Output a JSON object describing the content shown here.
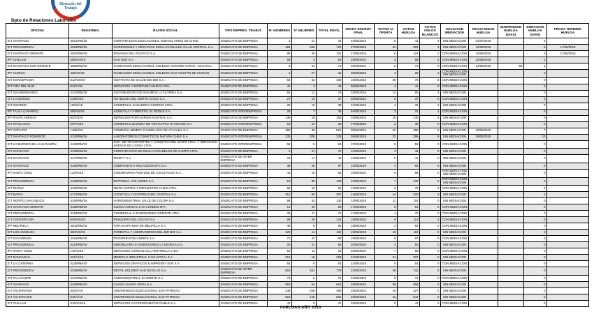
{
  "logo": {
    "label": "Dirección del Trabajo"
  },
  "header": {
    "title": "Dpto de Relaciones Laborales"
  },
  "footer": {
    "label": "HUELGAS AÑO 2019"
  },
  "colors": {
    "border": "#000000",
    "zebra": "#e6e6e6",
    "logo_blue": "#1f5fa8",
    "logo_red": "#d8281e"
  },
  "table": {
    "columns": [
      "OFICINA",
      "REGIONES.",
      "RAZON SOCIAL",
      "TIPO REPRES. TRABJS",
      "N° HOMBRES",
      "N° MUJERES",
      "TOTAL INVOL.",
      "FECHA ESCRUT. FINAL",
      "VOTOS U. OFERTA",
      "VOTOS HUELGA",
      "VOTOS NULOS BLANCOS",
      "SOLICITUD MEDIACION",
      "FECHA INICIO HUELGA",
      "SUSPENSION HUELGA (DIAS)",
      "DURACION HUELGA (DIAS)",
      "FECHA TERMINO HUELGA"
    ],
    "rows": [
      [
        "ICT SANTIAGO",
        "4021/RM/19",
        "CORPORACION EDUCACIONAL NUEVOS AIRES DE CHILE.",
        "SINDICATO DE EMPRESA",
        "3",
        "41",
        "44",
        "24/06/2019",
        "5",
        "41",
        "0",
        "SIN MEDIACION",
        "01/07/2019",
        "",
        "4",
        ""
      ],
      [
        "ICT PROVIDENCIA",
        "4038/RM/19",
        "INVERSIONES Y SERVICIOS EDUCACIONALES VALLE CENTRAL S.A.",
        "SINDICATO DE EMPRESA",
        "462",
        "258",
        "720",
        "27/05/2019",
        "62",
        "582",
        "4",
        "SIN MEDIACION",
        "10/06/2019",
        "",
        "8",
        "17/06/2019"
      ],
      [
        "ICT SANTIAGO ORIENTE",
        "4042/RM/19",
        "ENVASES DEL PACIFICO S.A.",
        "SINDICATO DE EMPRESA",
        "98",
        "26",
        "124",
        "27/05/2019",
        "0",
        "124",
        "0",
        "CON MEDIACION",
        "10/06/2019",
        "",
        "8",
        "17/06/2019"
      ],
      [
        "IPT CHILLAN",
        "308/XVI/19",
        "GAS SUR S.A.",
        "SINDICATO DE EMPRESA",
        "58",
        "4",
        "62",
        "28/05/2019",
        "2",
        "58",
        "2",
        "CON MEDIACION",
        "12/06/2019",
        "",
        "2",
        ""
      ],
      [
        "ICT SANTIAGO SUR ORIENTE",
        "4055/RM/19",
        "FUNDACION EDUCACIONAL COLEGIO ANTONIO VARAS - MACHALI.",
        "SINDICATO DE EMPRESA",
        "9",
        "64",
        "73",
        "30/05/2019",
        "0",
        "73",
        "0",
        "CON MEDIACION",
        "14/06/2019",
        "-60",
        "4",
        ""
      ],
      [
        "IPT CURICO",
        "402/VII/19",
        "FUNDACION EDUCACIONAL COLEGIO SAN AGUSTIN DE CURICO.",
        "SINDICATO DE EMPRESA",
        "4",
        "27",
        "31",
        "06/06/2019",
        "4",
        "26",
        "1",
        "CON MEDIACION SIN MEDIACION",
        "",
        "",
        "0",
        ""
      ],
      [
        "ICT CONCEPCION",
        "812/VIII/19",
        "INSTITUTO DE SALUD BIO BIO S.A.",
        "SINDICATO DE EMPRESA",
        "56",
        "52",
        "108",
        "10/06/2019",
        "25",
        "75",
        "8",
        "CON MEDIACION",
        "",
        "",
        "0",
        ""
      ],
      [
        "ICT VIÑA DEL MAR",
        "611/V/19",
        "SERVICIOS Y MONTAJES MARCO SPA.",
        "SINDICATO DE EMPRESA",
        "41",
        "4",
        "45",
        "06/06/2019",
        "4",
        "41",
        "0",
        "CON MEDIACION",
        "",
        "",
        "0",
        ""
      ],
      [
        "ICT SAN BERNARDO",
        "4101/RM/19",
        "DISTRIBUIDORA DE INSUMOS LA FLORIDA S.A.",
        "SINDICATO DE EMPRESA",
        "64",
        "12",
        "76",
        "03/06/2019",
        "12",
        "60",
        "4",
        "SIN MEDIACION",
        "",
        "",
        "0",
        ""
      ],
      [
        "ICT LA SERENA",
        "218/IV/19",
        "HOTELERA DEL NORTE CHICO S.A.",
        "SINDICATO DE EMPRESA",
        "27",
        "10",
        "37",
        "05/06/2019",
        "0",
        "37",
        "0",
        "CON MEDIACION",
        "",
        "",
        "0",
        ""
      ],
      [
        "ICT OSORNO",
        "190/X/19",
        "COMERCIAL GANADERA OSORNO LTDA.",
        "SINDICATO DE EMPRESA",
        "29",
        "10",
        "39",
        "31/05/2019",
        "4",
        "33",
        "2",
        "SIN MEDIACION",
        "",
        "",
        "0",
        ""
      ],
      [
        "IPT TALCA (LINARES)",
        "355/VII/19",
        "AGRICOLA Y FORESTAL EL ROBLE S.A.",
        "SINDICATO INTEREMPRESA",
        "28",
        "7",
        "35",
        "04/06/2019",
        "3",
        "31",
        "1",
        "CON MEDIACION",
        "",
        "",
        "0",
        ""
      ],
      [
        "IPT PUNTA ARENAS",
        "92/XII/19",
        "SERVICIOS PORTUARIOS AUSTRAL S.A.",
        "SINDICATO DE EMPRESA",
        "136",
        "18",
        "154",
        "03/06/2019",
        "10",
        "140",
        "4",
        "SIN MEDIACION",
        "",
        "",
        "0",
        ""
      ],
      [
        "ICT RANCAGUA",
        "507/VI/19",
        "COMERCIALIZADORA DE VESTUARIO O'HIGGINS S.A.",
        "SINDICATO INTEREMPRESA",
        "15",
        "23",
        "38",
        "07/06/2019",
        "2",
        "36",
        "0",
        "CON MEDIACION",
        "",
        "",
        "0",
        ""
      ],
      [
        "IPT COPIAPO",
        "148/III/19",
        "COMPAÑIA MINERA CANDELARIA DE ATACAMA S.A.",
        "SINDICATO DE EMPRESA",
        "480",
        "36",
        "516",
        "05/06/2019",
        "52",
        "458",
        "6",
        "SIN MEDIACION",
        "19/06/2019",
        "",
        "7",
        ""
      ],
      [
        "ICT SANTIAGO PONIENTE",
        "4120/RM/19",
        "LABORATORIOS COSMETICOS NATURA CHILE S.A.",
        "SINDICATO INTEREMPRESA",
        "130",
        "205",
        "335",
        "05/06/2019",
        "32",
        "295",
        "8",
        "SIN MEDIACION",
        "19/06/2019",
        "",
        "12",
        ""
      ],
      [
        "ICT LO BARNECHEA SAN RAMON",
        "4133/RM/19",
        "SOC. DE TRANSPORTES Y LOGISTICA DEL MAIPO LTDA. Y SERVICIOS ANEXOS DE CARGA LTDA.",
        "SINDICATO INTEREMPRESA",
        "58",
        "5",
        "63",
        "07/06/2019",
        "5",
        "58",
        "0",
        "CON MEDIACION",
        "",
        "",
        "0",
        ""
      ],
      [
        "ICT SANTIAGO",
        "4139/RM/19",
        "CORPORACION DE EDUCACION BELEN DE CAMPO LTDA.",
        "SINDICATO DE EMPRESA",
        "6",
        "41",
        "47",
        "11/06/2019",
        "3",
        "44",
        "0",
        "SIN MEDIACION",
        "",
        "",
        "0",
        ""
      ],
      [
        "ICT SANTIAGO",
        "4147/RM/19",
        "EFIZITY S.A.",
        "SINDICATO DE INTER EMPRESA",
        "24",
        "17",
        "41",
        "12/06/2019",
        "0",
        "41",
        "0",
        "SIN MEDIACION",
        "",
        "",
        "0",
        ""
      ],
      [
        "ICT SANTIAGO",
        "4150/RM/19",
        "COBRANZAS Y RECAUDOS BFC S.A.",
        "SINDICATO DE EMPRESA",
        "39",
        "48",
        "87",
        "12/06/2019",
        "4",
        "83",
        "0",
        "SIN MEDIACION",
        "",
        "",
        "0",
        ""
      ],
      [
        "IPT SANTA CRUZ",
        "133/VI/19",
        "CONSERVERA PENTZKE DE COLCHAGUA S.A.",
        "SINDICATO DE EMPRESA",
        "44",
        "19",
        "63",
        "10/06/2019",
        "5",
        "58",
        "0",
        "CON MEDIACION SIN MEDIACION",
        "",
        "",
        "0",
        ""
      ],
      [
        "ICT PROVIDENCIA",
        "4156/RM/19",
        "EDITORIAL LOS ANDES S.A.",
        "SINDICATO DE EMPRESA",
        "51",
        "88",
        "139",
        "13/06/2019",
        "7",
        "132",
        "0",
        "CON MEDIACION SIN MEDIACION",
        "",
        "",
        "0",
        ""
      ],
      [
        "ICT ÑUÑOA",
        "4160/RM/19",
        "MOTO PARTES Y REPUESTOS CHILE LTDA.",
        "SINDICATO DE EMPRESA",
        "58",
        "23",
        "81",
        "13/06/2019",
        "2",
        "79",
        "0",
        "CON MEDIACION",
        "",
        "",
        "0",
        ""
      ],
      [
        "ICT MAIPU",
        "4172/RM/19",
        "LOGISTICA Y DISTRIBUCION CENTRAL S.A.",
        "SINDICATO DE EMPRESA",
        "312",
        "55",
        "367",
        "14/06/2019",
        "44",
        "320",
        "3",
        "SIN MEDIACION",
        "",
        "",
        "0",
        ""
      ],
      [
        "ICT NORTE CHACABUCO",
        "4180/RM/19",
        "AGROINDUSTRIAL VALLE DE COLINA S.A.",
        "SINDICATO DE EMPRESA",
        "96",
        "34",
        "130",
        "14/06/2019",
        "12",
        "118",
        "0",
        "SIN MEDIACION",
        "",
        "",
        "0",
        ""
      ],
      [
        "ICT SANTIAGO ORIENTE",
        "4188/RM/19",
        "CLINICA DENTAL LAS CONDES SPA.",
        "SINDICATO DE EMPRESA",
        "14",
        "46",
        "60",
        "17/06/2019",
        "6",
        "54",
        "0",
        "CON MEDIACION",
        "",
        "",
        "0",
        ""
      ],
      [
        "ICT PROVIDENCIA",
        "4193/RM/19",
        "COMERCIAL E INVERSIONES ORIENTE LTDA.",
        "SINDICATO DE EMPRESA",
        "33",
        "41",
        "74",
        "17/06/2019",
        "4",
        "70",
        "0",
        "CON MEDIACION",
        "",
        "",
        "0",
        ""
      ],
      [
        "ICT CONCEPCION",
        "845/VIII/19",
        "PESQUERA DEL GOLFO S.A.",
        "SINDICATO DE EMPRESA",
        "88",
        "36",
        "124",
        "18/06/2019",
        "9",
        "112",
        "3",
        "CON MEDIACION",
        "",
        "",
        "0",
        ""
      ],
      [
        "IPT MELIPILLA",
        "4201/RM/19",
        "VIÑA SANTA EMA DE MELIPILLA S.A.",
        "SINDICATO DE EMPRESA",
        "46",
        "9",
        "55",
        "18/06/2019",
        "3",
        "52",
        "0",
        "CON MEDIACION",
        "",
        "",
        "0",
        ""
      ],
      [
        "ICT LOS ANGELES",
        "360/VIII/19",
        "FORESTAL Y ASERRADEROS DEL BIO BIO S.A.",
        "SINDICATO DE EMPRESA",
        "120",
        "14",
        "134",
        "19/06/2019",
        "15",
        "119",
        "0",
        "SIN MEDIACION",
        "",
        "",
        "0",
        ""
      ],
      [
        "ICT SAN MIGUEL",
        "4215/RM/19",
        "FRIGORIFICOS UNIDOS S.A.",
        "SINDICATO DE EMPRESA",
        "71",
        "22",
        "93",
        "19/06/2019",
        "6",
        "87",
        "0",
        "CON MEDIACION",
        "",
        "",
        "0",
        ""
      ],
      [
        "ICT PROVIDENCIA",
        "4223/RM/19",
        "INMOBILIARIA E INVERSIONES LA DEHESA S.A.",
        "SINDICATO DE EMPRESA",
        "25",
        "31",
        "56",
        "20/06/2019",
        "4",
        "52",
        "0",
        "SIN MEDIACION",
        "",
        "",
        "0",
        ""
      ],
      [
        "IPT SANTA CRUZ",
        "140/VI/19",
        "SERVICIOS AGRICOLAS LA ESTRELLA LTDA.",
        "SINDICATO DE EMPRESA",
        "52",
        "11",
        "63",
        "20/06/2019",
        "7",
        "56",
        "0",
        "CON MEDIACION",
        "",
        "",
        "0",
        ""
      ],
      [
        "ICT RANCAGUA",
        "521/VI/19",
        "MINERA E INDUSTRIAL CACHAPOAL S.A.",
        "SINDICATO DE EMPRESA",
        "210",
        "18",
        "228",
        "21/06/2019",
        "21",
        "207",
        "0",
        "SIN MEDIACION",
        "",
        "",
        "0",
        ""
      ],
      [
        "ICT LA CISTERNA",
        "4230/RM/19",
        "SERVICIOS GRAFICOS E IMPRENTA SUR S.A.",
        "SINDICATO DE EMPRESA",
        "54",
        "0",
        "54",
        "21/06/2019",
        "0",
        "54",
        "0",
        "CON MEDIACION",
        "",
        "",
        "0",
        ""
      ],
      [
        "ICT PROVIDENCIA",
        "4236/RM/19",
        "RETAIL HOLDING SAN NICOLAS S.A.",
        "SINDICATO DE INTER EMPRESA",
        "518",
        "261",
        "779",
        "24/06/2019",
        "38",
        "741",
        "0",
        "SIN MEDIACION",
        "",
        "",
        "0",
        ""
      ],
      [
        "ICT TALAGANTE",
        "4241/RM/19",
        "AGROINDUSTRIAL EL MONTE S.A.",
        "SINDICATO DE EMPRESA",
        "74",
        "0",
        "74",
        "24/06/2019",
        "0",
        "74",
        "0",
        "CON MEDIACION",
        "",
        "",
        "0",
        ""
      ],
      [
        "ICT SANTIAGO",
        "4248/RM/19",
        "CLINICA SANTA SOFIA S.A.",
        "SINDICATO DE EMPRESA",
        "562",
        "54",
        "616",
        "25/06/2019",
        "58",
        "558",
        "2",
        "SIN MEDIACION",
        "",
        "",
        "0",
        ""
      ],
      [
        "ICT VALPARAISO",
        "640/V/19",
        "UNIVERSIDAD EDUCACIONAL SAN PATRICIO.",
        "SINDICATO DE EMPRESA",
        "248",
        "208",
        "456",
        "25/06/2019",
        "29",
        "427",
        "0",
        "SIN MEDIACION",
        "",
        "",
        "0",
        ""
      ],
      [
        "ICT VALPARAISO",
        "641/V/19",
        "UNIVERSIDAD EDUCACIONAL SAN PATRICIO.",
        "SINDICATO DE EMPRESA",
        "518",
        "146",
        "664",
        "25/06/2019",
        "22",
        "642",
        "0",
        "SIN MEDIACION",
        "",
        "",
        "0",
        ""
      ],
      [
        "ICT CHILLAN",
        "315/XVI/19",
        "SERVICIOS GASTRONOMICOS ÑUBLE S.A.",
        "SINDICATO DE EMPRESA",
        "41",
        "0",
        "41",
        "26/06/2019",
        "0",
        "41",
        "0",
        "CON MEDIACION",
        "",
        "",
        "0",
        ""
      ]
    ]
  }
}
